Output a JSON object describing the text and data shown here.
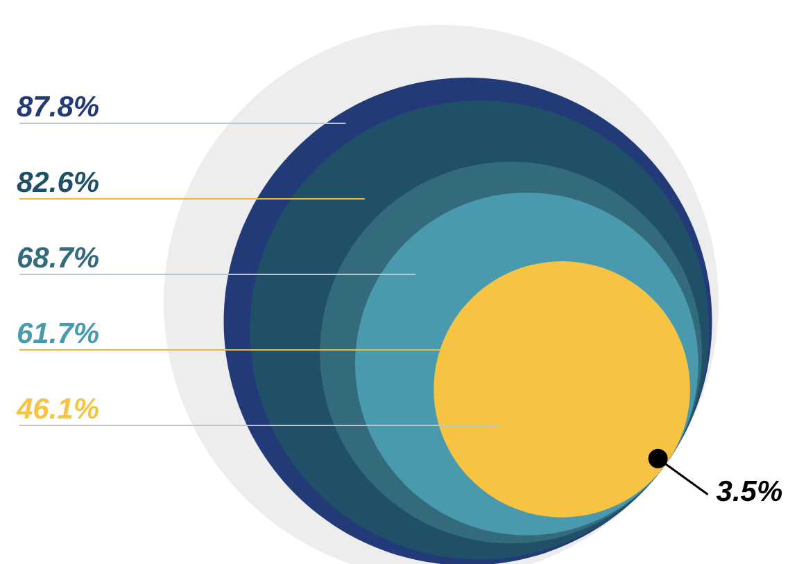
{
  "chart_data": {
    "type": "other",
    "categories": [
      null,
      null,
      null,
      null,
      null,
      null
    ],
    "values": [
      87.8,
      82.6,
      68.7,
      61.7,
      46.1,
      3.5
    ],
    "colors": [
      "#233a78",
      "#1f5068",
      "#346b7c",
      "#4a9aaf",
      "#f6c343",
      "#000000"
    ],
    "value_labels": [
      "87.8%",
      "82.6%",
      "68.7%",
      "61.7%",
      "46.1%",
      "3.5%"
    ]
  }
}
